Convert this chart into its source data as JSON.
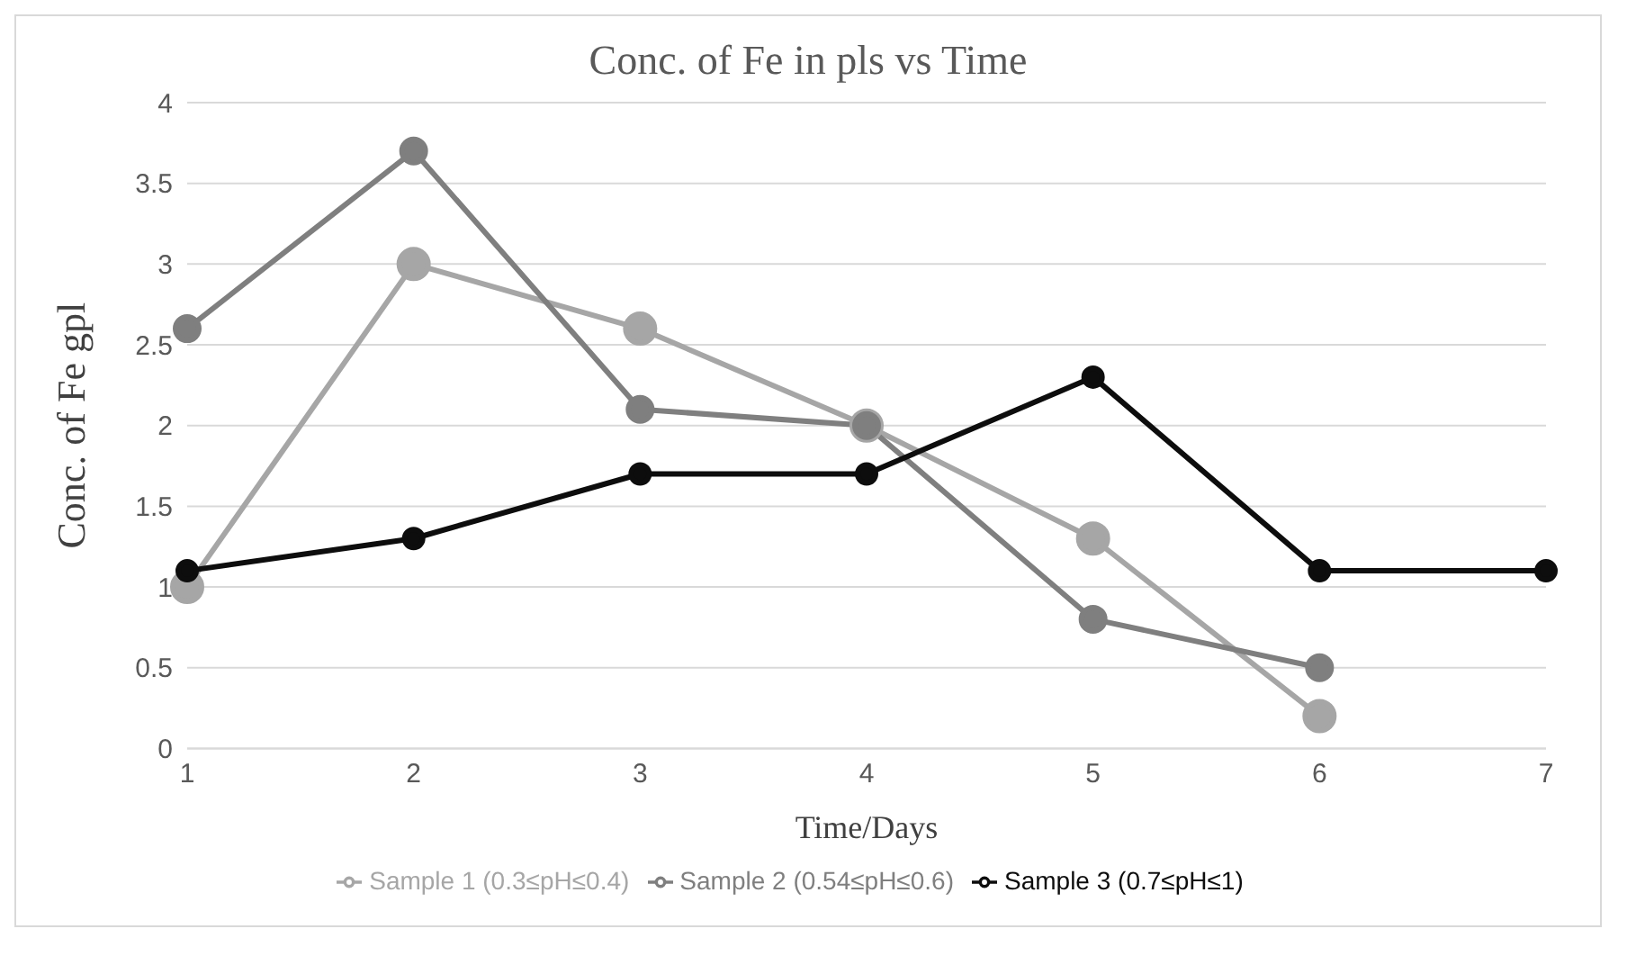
{
  "chart_data": {
    "type": "line",
    "title": "Conc. of Fe in pls vs Time",
    "xlabel": "Time/Days",
    "ylabel": "Conc. of Fe gpl",
    "categories": [
      "1",
      "2",
      "3",
      "4",
      "5",
      "6",
      "7"
    ],
    "series": [
      {
        "name": "Sample 1 (0.3≤pH≤0.4)",
        "color": "#a6a6a6",
        "values": [
          1.0,
          3.0,
          2.6,
          2.0,
          1.3,
          0.2,
          null
        ]
      },
      {
        "name": "Sample 2 (0.54≤pH≤0.6)",
        "color": "#7f7f7f",
        "values": [
          2.6,
          3.7,
          2.1,
          2.0,
          0.8,
          0.5,
          null
        ]
      },
      {
        "name": "Sample 3 (0.7≤pH≤1)",
        "color": "#0d0d0d",
        "values": [
          1.1,
          1.3,
          1.7,
          1.7,
          2.3,
          1.1,
          1.1
        ]
      }
    ],
    "ylim": [
      0,
      4
    ],
    "yticks": [
      0,
      0.5,
      1,
      1.5,
      2,
      2.5,
      3,
      3.5,
      4
    ],
    "grid": "y",
    "legend": "bottom",
    "marker": "circle",
    "line_style": "solid"
  }
}
